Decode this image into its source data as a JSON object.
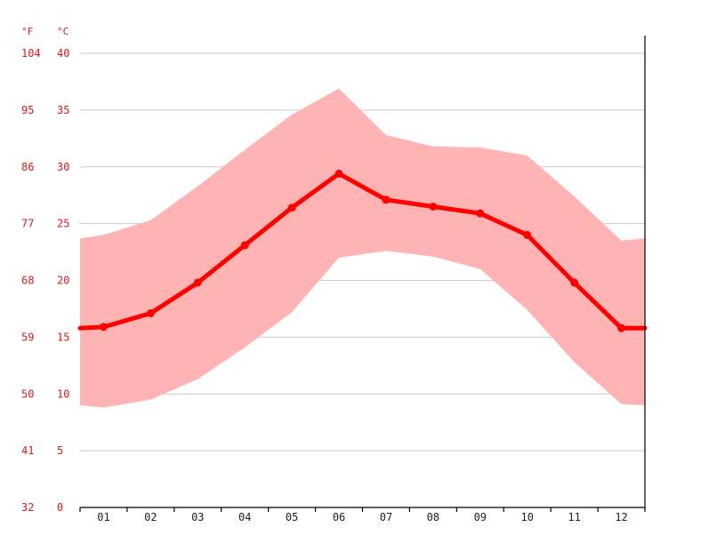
{
  "chart_data": {
    "type": "area",
    "title": "",
    "xlabel": "",
    "ylabel": "",
    "units": {
      "left": "°F",
      "right": "°C"
    },
    "categories": [
      "01",
      "02",
      "03",
      "04",
      "05",
      "06",
      "07",
      "08",
      "09",
      "10",
      "11",
      "12"
    ],
    "y_ticks_c": [
      0,
      5,
      10,
      15,
      20,
      25,
      30,
      35,
      40
    ],
    "y_ticks_f": [
      "32",
      "41",
      "50",
      "59",
      "68",
      "77",
      "86",
      "95",
      "104"
    ],
    "ylim": [
      0,
      40
    ],
    "grid": true,
    "series": [
      {
        "type": "line",
        "color": "#ff0000",
        "values": [
          15.9,
          17.1,
          19.8,
          23.1,
          26.4,
          29.4,
          27.1,
          26.5,
          25.9,
          24.0,
          19.8,
          15.8
        ],
        "edge_values": [
          15.8,
          15.8
        ]
      },
      {
        "type": "band",
        "color": "#ffb3b3",
        "upper": [
          24.0,
          25.3,
          28.3,
          31.5,
          34.6,
          36.9,
          32.8,
          31.8,
          31.7,
          31.0,
          27.4,
          23.5
        ],
        "lower": [
          8.8,
          9.5,
          11.3,
          14.1,
          17.2,
          22.0,
          22.6,
          22.1,
          21.0,
          17.4,
          12.8,
          9.1
        ],
        "edge_upper": [
          23.7,
          23.7
        ],
        "edge_lower": [
          9.0,
          9.0
        ]
      }
    ]
  }
}
